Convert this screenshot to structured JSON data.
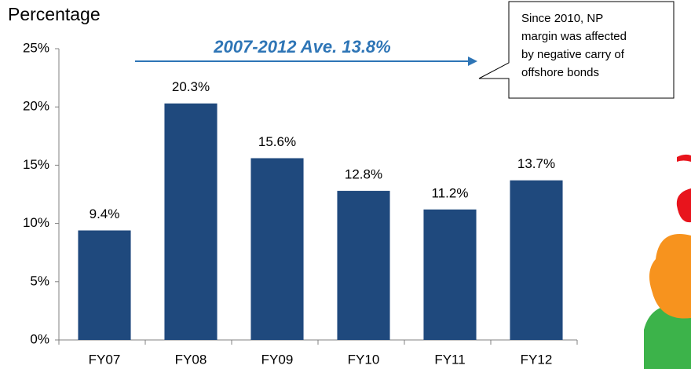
{
  "chart_data": {
    "type": "bar",
    "title": "Percentage",
    "categories": [
      "FY07",
      "FY08",
      "FY09",
      "FY10",
      "FY11",
      "FY12"
    ],
    "values": [
      9.4,
      20.3,
      15.6,
      12.8,
      11.2,
      13.7
    ],
    "value_labels": [
      "9.4%",
      "20.3%",
      "15.6%",
      "12.8%",
      "11.2%",
      "13.7%"
    ],
    "color": "#1f497d",
    "ylim": [
      0,
      25
    ],
    "yticks": [
      {
        "value": 0,
        "label": "0%"
      },
      {
        "value": 5,
        "label": "5%"
      },
      {
        "value": 10,
        "label": "10%"
      },
      {
        "value": 15,
        "label": "15%"
      },
      {
        "value": 20,
        "label": "20%"
      },
      {
        "value": 25,
        "label": "25%"
      }
    ],
    "grid": false,
    "average_annotation": "2007-2012 Ave. 13.8%",
    "callout_lines": [
      "Since 2010, NP",
      "margin was affected",
      "by negative carry of",
      "offshore bonds"
    ]
  }
}
